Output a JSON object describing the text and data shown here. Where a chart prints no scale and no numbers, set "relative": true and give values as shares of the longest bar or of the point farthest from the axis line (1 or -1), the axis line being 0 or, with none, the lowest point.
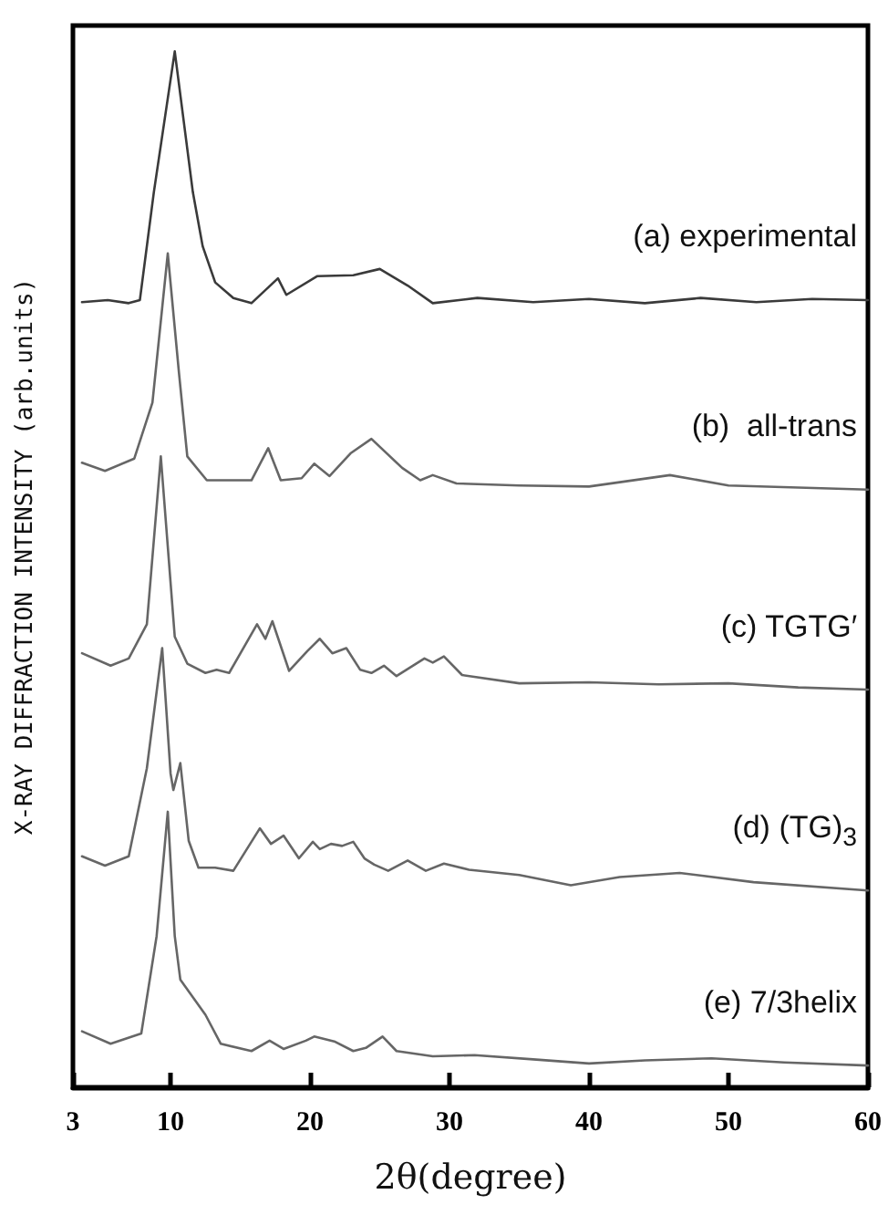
{
  "chart_data": {
    "type": "line",
    "relative": true,
    "xlabel": "2θ(degree)",
    "ylabel": "X-RAY DIFFRACTION INTENSITY (arb.units)",
    "xlim": [
      3,
      60
    ],
    "xticks": [
      3,
      10,
      20,
      30,
      40,
      50,
      60
    ],
    "grid": false,
    "marker": "none",
    "line_style": "solid",
    "series": [
      {
        "name": "(a) experimental",
        "color": "#3a3a3a",
        "x": [
          3.65,
          5.5,
          7.0,
          7.8,
          8.8,
          10.3,
          11.6,
          12.3,
          13.2,
          14.5,
          15.8,
          17.7,
          18.3,
          20.5,
          23.1,
          25.0,
          27.0,
          28.8,
          32,
          36,
          40,
          44,
          48,
          52,
          56,
          60
        ],
        "values": [
          0.758,
          0.76,
          0.757,
          0.76,
          0.864,
          1.0,
          0.864,
          0.812,
          0.777,
          0.762,
          0.757,
          0.781,
          0.765,
          0.783,
          0.784,
          0.79,
          0.774,
          0.757,
          0.762,
          0.758,
          0.761,
          0.757,
          0.762,
          0.758,
          0.761,
          0.76
        ]
      },
      {
        "name": "(b)  all-trans",
        "color": "#666666",
        "x": [
          3.65,
          5.3,
          7.4,
          8.7,
          9.8,
          10.6,
          11.2,
          12.6,
          15.8,
          17.0,
          17.9,
          19.4,
          20.3,
          21.4,
          22.9,
          24.4,
          26.6,
          27.9,
          28.8,
          30.5,
          35,
          40,
          45.8,
          50,
          55,
          60
        ],
        "values": [
          0.603,
          0.595,
          0.607,
          0.661,
          0.805,
          0.69,
          0.609,
          0.586,
          0.586,
          0.617,
          0.586,
          0.588,
          0.602,
          0.59,
          0.612,
          0.626,
          0.598,
          0.586,
          0.591,
          0.583,
          0.581,
          0.58,
          0.591,
          0.581,
          0.579,
          0.577
        ]
      },
      {
        "name": "(c) TGTG′",
        "color": "#666666",
        "x": [
          3.65,
          5.7,
          7.0,
          8.3,
          9.3,
          10.3,
          11.2,
          12.5,
          13.3,
          14.2,
          16.2,
          16.8,
          17.3,
          18.5,
          19.8,
          20.7,
          21.6,
          22.6,
          23.6,
          24.4,
          25.3,
          26.2,
          28.2,
          28.8,
          29.6,
          30.9,
          35,
          40,
          45,
          50,
          55,
          60
        ],
        "values": [
          0.419,
          0.407,
          0.414,
          0.447,
          0.609,
          0.435,
          0.409,
          0.4,
          0.403,
          0.4,
          0.447,
          0.433,
          0.45,
          0.402,
          0.421,
          0.433,
          0.419,
          0.424,
          0.403,
          0.4,
          0.407,
          0.397,
          0.414,
          0.41,
          0.416,
          0.398,
          0.39,
          0.391,
          0.389,
          0.39,
          0.386,
          0.384
        ]
      },
      {
        "name": "(d) (TG)$_{3}$",
        "color": "#666666",
        "x": [
          3.65,
          5.3,
          7.0,
          8.3,
          9.4,
          10.0,
          10.2,
          10.7,
          11.3,
          12.0,
          13.2,
          14.5,
          16.4,
          17.2,
          18.1,
          19.2,
          20.2,
          20.7,
          21.5,
          22.3,
          23.1,
          23.9,
          24.6,
          25.6,
          27.0,
          28.3,
          29.6,
          31.4,
          35,
          38.7,
          42.2,
          46.5,
          51.8,
          60
        ],
        "values": [
          0.223,
          0.214,
          0.223,
          0.308,
          0.424,
          0.303,
          0.287,
          0.313,
          0.238,
          0.212,
          0.212,
          0.209,
          0.25,
          0.235,
          0.243,
          0.221,
          0.237,
          0.23,
          0.235,
          0.233,
          0.237,
          0.221,
          0.215,
          0.209,
          0.219,
          0.209,
          0.216,
          0.21,
          0.205,
          0.195,
          0.203,
          0.207,
          0.198,
          0.19
        ]
      },
      {
        "name": "(e) 7/3helix",
        "color": "#666666",
        "x": [
          3.65,
          5.7,
          7.9,
          9.0,
          9.8,
          10.3,
          10.7,
          11.6,
          12.5,
          13.6,
          15.8,
          17.1,
          18.1,
          19.7,
          20.3,
          21.8,
          23.1,
          24.0,
          25.2,
          26.2,
          28.8,
          31.8,
          36,
          40,
          44,
          48.8,
          54,
          60
        ],
        "values": [
          0.054,
          0.042,
          0.052,
          0.146,
          0.266,
          0.146,
          0.104,
          0.087,
          0.07,
          0.042,
          0.035,
          0.045,
          0.037,
          0.045,
          0.049,
          0.044,
          0.035,
          0.038,
          0.049,
          0.035,
          0.03,
          0.031,
          0.027,
          0.023,
          0.026,
          0.028,
          0.024,
          0.021
        ]
      }
    ]
  }
}
